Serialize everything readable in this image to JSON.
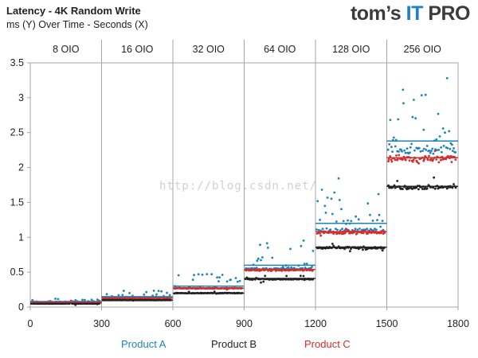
{
  "chart_data": {
    "type": "scatter",
    "title": "Latency - 4K Random Write",
    "subtitle": "ms (Y) Over Time - Seconds (X)",
    "xlim": [
      0,
      1800
    ],
    "ylim": [
      0,
      3.5
    ],
    "x_ticks": [
      "0",
      "300",
      "600",
      "900",
      "1200",
      "1500",
      "1800"
    ],
    "y_ticks": [
      "0",
      "0.5",
      "1",
      "1.5",
      "2",
      "2.5",
      "3",
      "3.5"
    ],
    "grid": "vertical lines at segment boundaries",
    "segments": [
      {
        "label": "8 OIO",
        "x_start": 0,
        "x_end": 300
      },
      {
        "label": "16 OIO",
        "x_start": 300,
        "x_end": 600
      },
      {
        "label": "32 OIO",
        "x_start": 600,
        "x_end": 900
      },
      {
        "label": "64 OIO",
        "x_start": 900,
        "x_end": 1200
      },
      {
        "label": "128 OIO",
        "x_start": 1200,
        "x_end": 1500
      },
      {
        "label": "256 OIO",
        "x_start": 1500,
        "x_end": 1800
      }
    ],
    "legend_position": "bottom",
    "series": [
      {
        "name": "Product A",
        "color": "#1d83b8",
        "segment_mean": [
          0.08,
          0.15,
          0.3,
          0.6,
          1.2,
          2.38
        ],
        "segment_typical": [
          0.07,
          0.13,
          0.27,
          0.55,
          1.1,
          2.25
        ],
        "segment_max": [
          0.12,
          0.24,
          0.5,
          0.97,
          1.85,
          3.35
        ]
      },
      {
        "name": "Product B",
        "color": "#222222",
        "segment_mean": [
          0.06,
          0.1,
          0.2,
          0.41,
          0.86,
          1.73
        ],
        "segment_typical": [
          0.05,
          0.1,
          0.2,
          0.4,
          0.85,
          1.72
        ],
        "segment_max": [
          0.07,
          0.12,
          0.23,
          0.45,
          0.92,
          1.85
        ]
      },
      {
        "name": "Product C",
        "color": "#d42d2d",
        "segment_mean": [
          0.07,
          0.13,
          0.27,
          0.54,
          1.08,
          2.14
        ],
        "segment_typical": [
          0.07,
          0.13,
          0.27,
          0.53,
          1.07,
          2.13
        ],
        "segment_max": [
          0.09,
          0.15,
          0.3,
          0.58,
          1.15,
          2.25
        ]
      }
    ]
  },
  "logo": {
    "part1": "tom’s",
    "part2": "IT",
    "part3": "PRO"
  },
  "watermark": "http://blog.csdn.net/"
}
